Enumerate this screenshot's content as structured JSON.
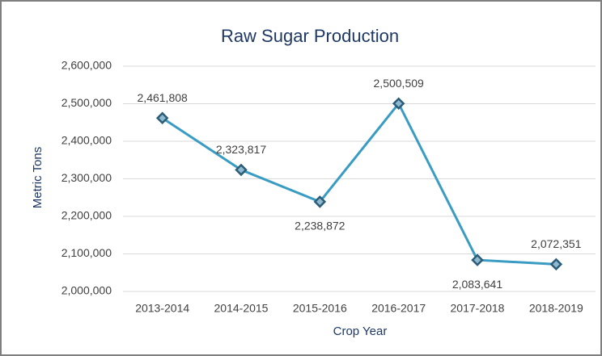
{
  "chart_data": {
    "type": "line",
    "title": "Raw Sugar Production",
    "x_label": "Crop Year",
    "y_label": "Metric Tons",
    "categories": [
      "2013-2014",
      "2014-2015",
      "2015-2016",
      "2016-2017",
      "2017-2018",
      "2018-2019"
    ],
    "series": [
      {
        "name": "Raw Sugar Production",
        "color": "#3a9cc2",
        "values": [
          2461808,
          2323817,
          2238872,
          2500509,
          2083641,
          2072351
        ],
        "value_labels": [
          "2,461,808",
          "2,323,817",
          "2,238,872",
          "2,500,509",
          "2,083,641",
          "2,072,351"
        ]
      }
    ],
    "ylim": [
      2000000,
      2600000
    ],
    "yticks": [
      {
        "value": 2000000,
        "label": "2,000,000"
      },
      {
        "value": 2100000,
        "label": "2,100,000"
      },
      {
        "value": 2200000,
        "label": "2,200,000"
      },
      {
        "value": 2300000,
        "label": "2,300,000"
      },
      {
        "value": 2400000,
        "label": "2,400,000"
      },
      {
        "value": 2500000,
        "label": "2,500,000"
      },
      {
        "value": 2600000,
        "label": "2,600,000"
      }
    ],
    "grid": true
  }
}
